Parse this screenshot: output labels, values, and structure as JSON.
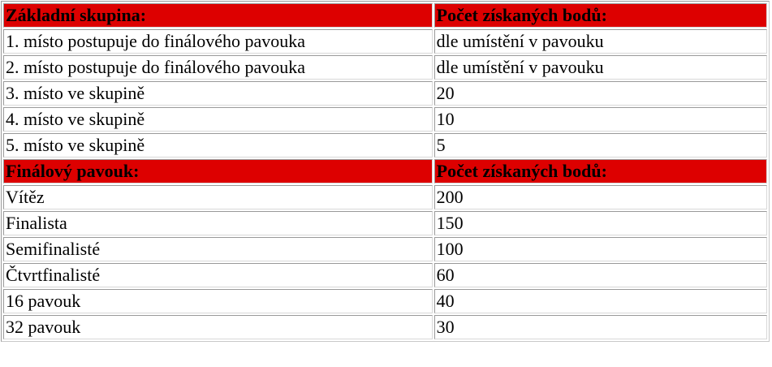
{
  "colors": {
    "header_bg": "#dd0000",
    "header_text": "#000000",
    "body_text": "#000000",
    "row_bg": "#ffffff",
    "border_dark": "#9a9a9a",
    "border_light": "#d8d8d8"
  },
  "table": {
    "sections": [
      {
        "header": {
          "label": "Základní skupina:",
          "points_label": "Počet získaných bodů:"
        },
        "rows": [
          {
            "label": "1. místo postupuje do finálového pavouka",
            "points": "dle umístění v pavouku"
          },
          {
            "label": "2. místo postupuje do finálového pavouka",
            "points": "dle umístění v pavouku"
          },
          {
            "label": "3. místo ve skupině",
            "points": "20"
          },
          {
            "label": "4. místo ve skupině",
            "points": "10"
          },
          {
            "label": "5. místo ve skupině",
            "points": "5"
          }
        ]
      },
      {
        "header": {
          "label": "Finálový pavouk:",
          "points_label": "Počet získaných bodů:"
        },
        "rows": [
          {
            "label": "Vítěz",
            "points": "200"
          },
          {
            "label": "Finalista",
            "points": "150"
          },
          {
            "label": "Semifinalisté",
            "points": "100"
          },
          {
            "label": "Čtvrtfinalisté",
            "points": "60"
          },
          {
            "label": "16 pavouk",
            "points": "40"
          },
          {
            "label": "32 pavouk",
            "points": "30"
          }
        ]
      }
    ]
  }
}
